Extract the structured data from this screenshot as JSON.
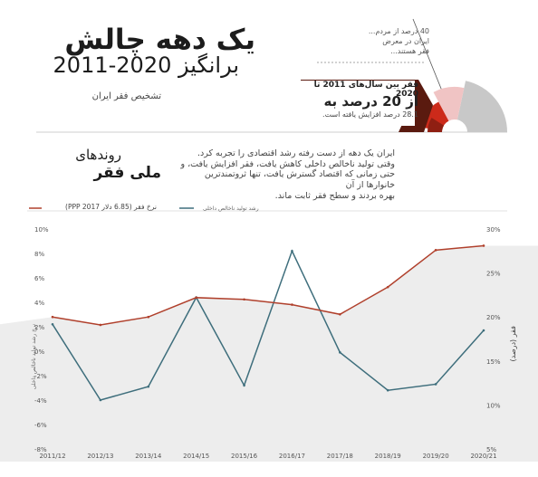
{
  "header": {
    "title": "یک دهه چالش",
    "subtitle": "برانگیز 2020-2011",
    "diagnosis": "تشخیص فقر ایران"
  },
  "callout_40": {
    "lines": [
      "40 درصد از مردم...",
      "ایران در معرض",
      "فقر هستند..."
    ]
  },
  "callout_poverty": {
    "label": "فقر بین سال‌های 2011 تا 2020",
    "value": "از 20 درصد به",
    "note": "28.1 درصد افزایش یافته است."
  },
  "section": {
    "heading_a": "روندهای",
    "heading_b": "ملی فقر",
    "paragraph": [
      "ایران یک دهه از دست رفته رشد اقتصادی را تجربه کرد.",
      "وقتی تولید ناخالص داخلی کاهش یافت، فقر افزایش یافت، و",
      "حتی زمانی که اقتصاد گسترش یافت، تنها ثروتمندترین خانوارها از آن",
      "بهره بردند و سطح فقر ثابت ماند."
    ]
  },
  "legend": {
    "poverty": "نرخ فقر (6.85 دلار 2017 PPP)",
    "gdp": "رشد تولید ناخالص داخلی"
  },
  "axes": {
    "left_title": "نرخ رشد تولید ناخالص داخلی",
    "right_title": "فقر (درصد)"
  },
  "colors": {
    "poverty_line": "#b0402c",
    "gdp_line": "#3e6e7c",
    "shade": "#ededed",
    "donut_dark": "#8f1f12",
    "donut_red": "#cc2a1a",
    "donut_pink": "#f0c4c4",
    "donut_grey": "#c8c8c8"
  },
  "chart_data": {
    "type": "line",
    "categories": [
      "2011/12",
      "2012/13",
      "2013/14",
      "2014/15",
      "2015/16",
      "2016/17",
      "2017/18",
      "2018/19",
      "2019/20",
      "2020/21"
    ],
    "series": [
      {
        "name": "نرخ فقر (6.85 دلار 2017 PPP)",
        "axis": "right",
        "values": [
          20.0,
          19.1,
          20.0,
          22.2,
          22.0,
          21.4,
          20.3,
          23.4,
          27.6,
          28.1
        ]
      },
      {
        "name": "رشد تولید ناخالص داخلی",
        "axis": "left",
        "values": [
          2.2,
          -4.0,
          -2.9,
          4.4,
          -2.8,
          8.2,
          -0.1,
          -3.2,
          -2.7,
          1.7
        ]
      }
    ],
    "y_left": {
      "ticks": [
        10,
        8,
        6,
        4,
        2,
        0,
        -2,
        -4,
        -6,
        -8
      ],
      "tick_labels": [
        "10%",
        "8%",
        "6%",
        "4%",
        "2%",
        "0%",
        "-2%",
        "-4%",
        "-6%",
        "-8%"
      ],
      "range": [
        -8,
        10
      ]
    },
    "y_right": {
      "ticks": [
        30,
        25,
        20,
        15,
        10,
        5
      ],
      "tick_labels": [
        "30%",
        "25%",
        "20%",
        "15%",
        "10%",
        "5%"
      ],
      "range": [
        5,
        30
      ]
    },
    "xlabel": "",
    "grid": false
  }
}
